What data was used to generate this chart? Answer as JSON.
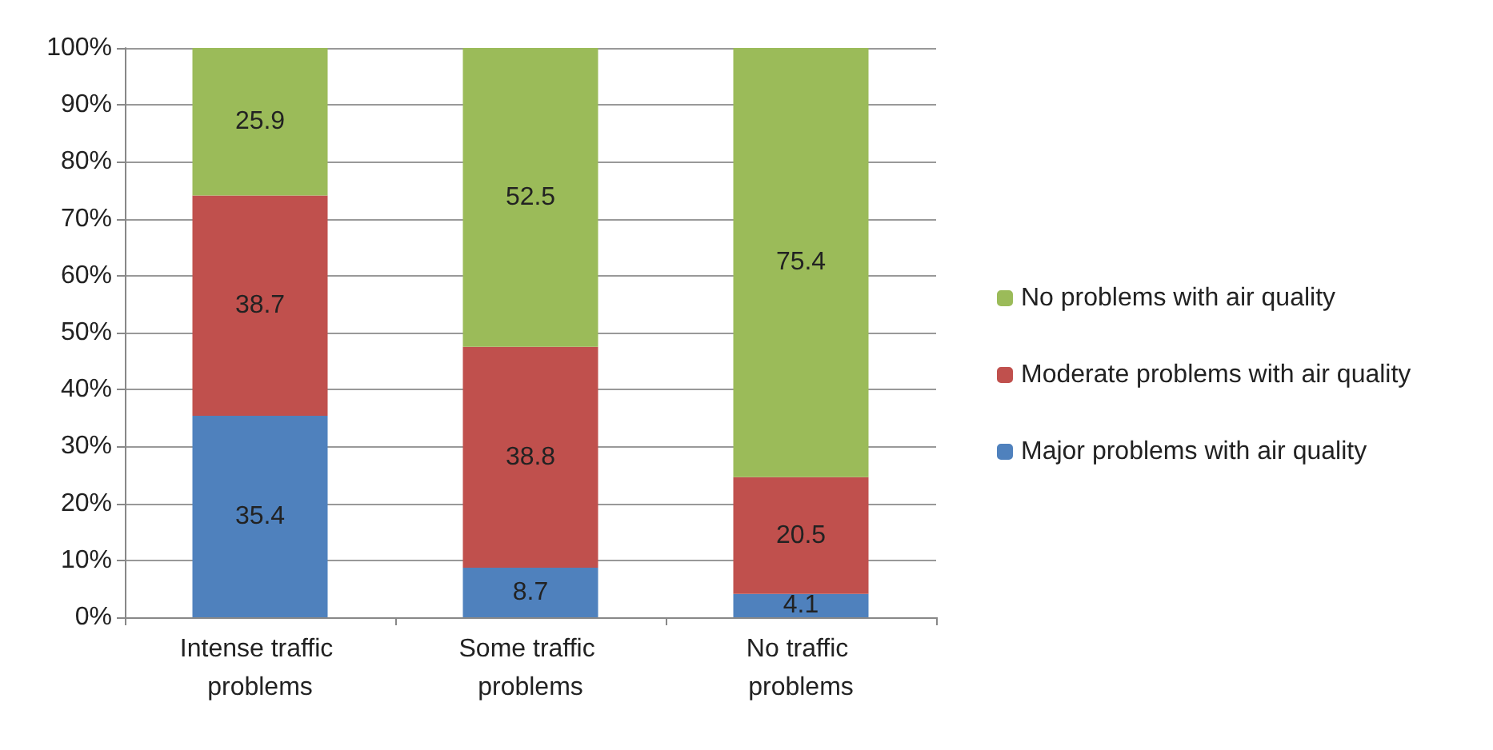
{
  "chart_data": {
    "type": "bar",
    "stacked": true,
    "categories": [
      "Intense traffic problems",
      "Some traffic problems",
      "No traffic problems"
    ],
    "series": [
      {
        "name": "Major problems with air quality",
        "color": "#4f81bd",
        "values": [
          35.4,
          8.7,
          4.1
        ]
      },
      {
        "name": "Moderate problems with air quality",
        "color": "#c0504d",
        "values": [
          38.7,
          38.8,
          20.5
        ]
      },
      {
        "name": "No problems with air quality",
        "color": "#9bbb59",
        "values": [
          25.9,
          52.5,
          75.4
        ]
      }
    ],
    "ylim": [
      0,
      100
    ],
    "yticks": [
      {
        "value": 0,
        "label": "0%"
      },
      {
        "value": 10,
        "label": "10%"
      },
      {
        "value": 20,
        "label": "20%"
      },
      {
        "value": 30,
        "label": "30%"
      },
      {
        "value": 40,
        "label": "40%"
      },
      {
        "value": 50,
        "label": "50%"
      },
      {
        "value": 60,
        "label": "60%"
      },
      {
        "value": 70,
        "label": "70%"
      },
      {
        "value": 80,
        "label": "80%"
      },
      {
        "value": 90,
        "label": "90%"
      },
      {
        "value": 100,
        "label": "100%"
      }
    ],
    "grid": "y",
    "legend": "right",
    "data_labels": true
  }
}
